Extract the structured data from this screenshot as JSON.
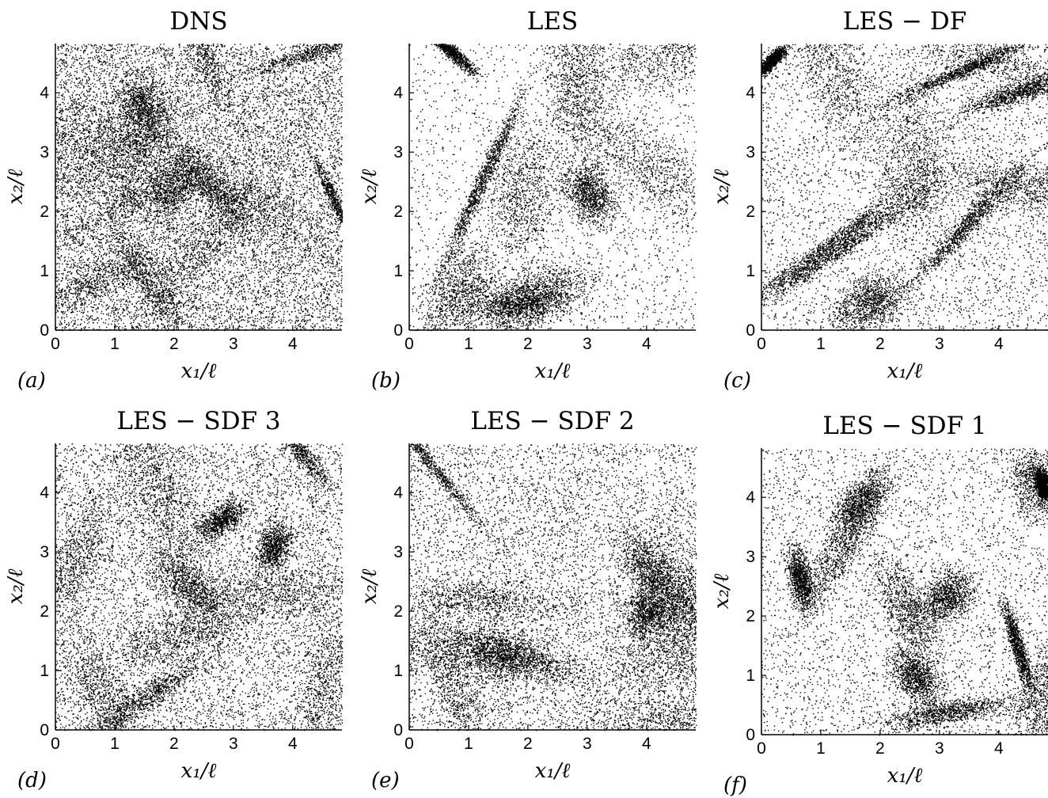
{
  "chart_data": [
    {
      "type": "scatter",
      "panel": "(a)",
      "title": "DNS",
      "xlabel": "x₁/ℓ",
      "ylabel": "x₂/ℓ",
      "xticks": [
        "0",
        "1",
        "2",
        "3",
        "4"
      ],
      "yticks": [
        "0",
        "1",
        "2",
        "3",
        "4"
      ],
      "xlim": [
        0,
        4.83
      ],
      "ylim": [
        0,
        4.83
      ],
      "density": "uniform, fine-grained clustering",
      "marker_color": "#000000"
    },
    {
      "type": "scatter",
      "panel": "(b)",
      "title": "LES",
      "xlabel": "x₁/ℓ",
      "ylabel": "x₂/ℓ",
      "xticks": [
        "0",
        "1",
        "2",
        "3",
        "4"
      ],
      "yticks": [
        "0",
        "1",
        "2",
        "3",
        "4"
      ],
      "xlim": [
        0,
        4.83
      ],
      "ylim": [
        0,
        4.83
      ],
      "density": "strong filamentary clustering with large voids",
      "marker_color": "#000000"
    },
    {
      "type": "scatter",
      "panel": "(c)",
      "title": "LES − DF",
      "xlabel": "x₁/ℓ",
      "ylabel": "x₂/ℓ",
      "xticks": [
        "0",
        "1",
        "2",
        "3",
        "4"
      ],
      "yticks": [
        "0",
        "1",
        "2",
        "3",
        "4"
      ],
      "xlim": [
        0,
        4.83
      ],
      "ylim": [
        0,
        4.83
      ],
      "density": "filamentary clustering with voids",
      "marker_color": "#000000"
    },
    {
      "type": "scatter",
      "panel": "(d)",
      "title": "LES − SDF 3",
      "xlabel": "x₁/ℓ",
      "ylabel": "x₂/ℓ",
      "xticks": [
        "0",
        "1",
        "2",
        "3",
        "4"
      ],
      "yticks": [
        "0",
        "1",
        "2",
        "3",
        "4"
      ],
      "xlim": [
        0,
        4.83
      ],
      "ylim": [
        0,
        4.83
      ],
      "density": "moderate clustering",
      "marker_color": "#000000"
    },
    {
      "type": "scatter",
      "panel": "(e)",
      "title": "LES − SDF 2",
      "xlabel": "x₁/ℓ",
      "ylabel": "x₂/ℓ",
      "xticks": [
        "0",
        "1",
        "2",
        "3",
        "4"
      ],
      "yticks": [
        "0",
        "1",
        "2",
        "3",
        "4"
      ],
      "xlim": [
        0,
        4.83
      ],
      "ylim": [
        0,
        4.83
      ],
      "density": "moderate clustering with filaments",
      "marker_color": "#000000"
    },
    {
      "type": "scatter",
      "panel": "(f)",
      "title": "LES − SDF 1",
      "xlabel": "x₁/ℓ",
      "ylabel": "x₂/ℓ",
      "xticks": [
        "0",
        "1",
        "2",
        "3",
        "4"
      ],
      "yticks": [
        "0",
        "1",
        "2",
        "3",
        "4"
      ],
      "xlim": [
        0,
        4.83
      ],
      "ylim": [
        0,
        4.83
      ],
      "density": "filamentary clustering with voids",
      "marker_color": "#000000"
    }
  ]
}
